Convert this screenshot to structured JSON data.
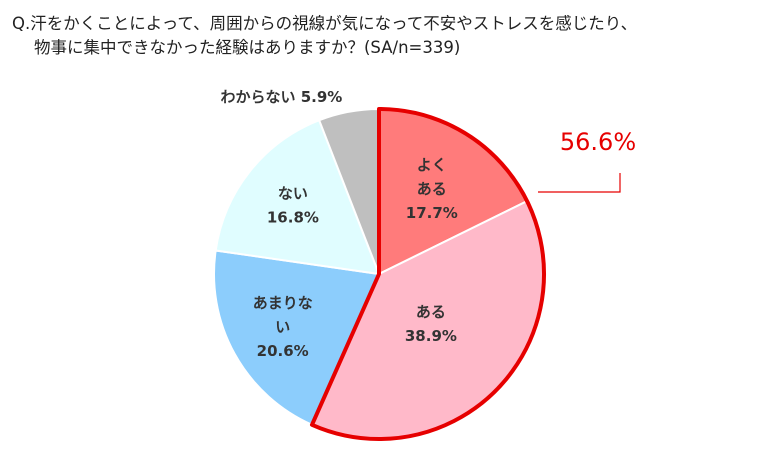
{
  "question": {
    "line1": "Q.汗をかくことによって、周囲からの視線が気になって不安やストレスを感じたり、",
    "line2": "物事に集中できなかった経験はありますか？(SA/n=339)"
  },
  "chart_data": {
    "type": "pie",
    "title": "",
    "slices": [
      {
        "label_lines": [
          "よく",
          "ある"
        ],
        "value": 17.7,
        "value_text": "17.7%",
        "color": "#ff7b7b"
      },
      {
        "label_lines": [
          "ある"
        ],
        "value": 38.9,
        "value_text": "38.9%",
        "color": "#ffb9c9"
      },
      {
        "label_lines": [
          "あまりな",
          "い"
        ],
        "value": 20.6,
        "value_text": "20.6%",
        "color": "#8ccdfc"
      },
      {
        "label_lines": [
          "ない"
        ],
        "value": 16.8,
        "value_text": "16.8%",
        "color": "#e0fdff"
      },
      {
        "label_lines": [
          "わからない"
        ],
        "value": 5.9,
        "value_text": "5.9%",
        "color": "#bfbfbf"
      }
    ],
    "highlight": {
      "slices": [
        "よく ある",
        "ある"
      ],
      "total_text": "56.6%",
      "color": "#e60000"
    },
    "start": "12 o'clock",
    "direction": "clockwise",
    "legend": "none"
  }
}
